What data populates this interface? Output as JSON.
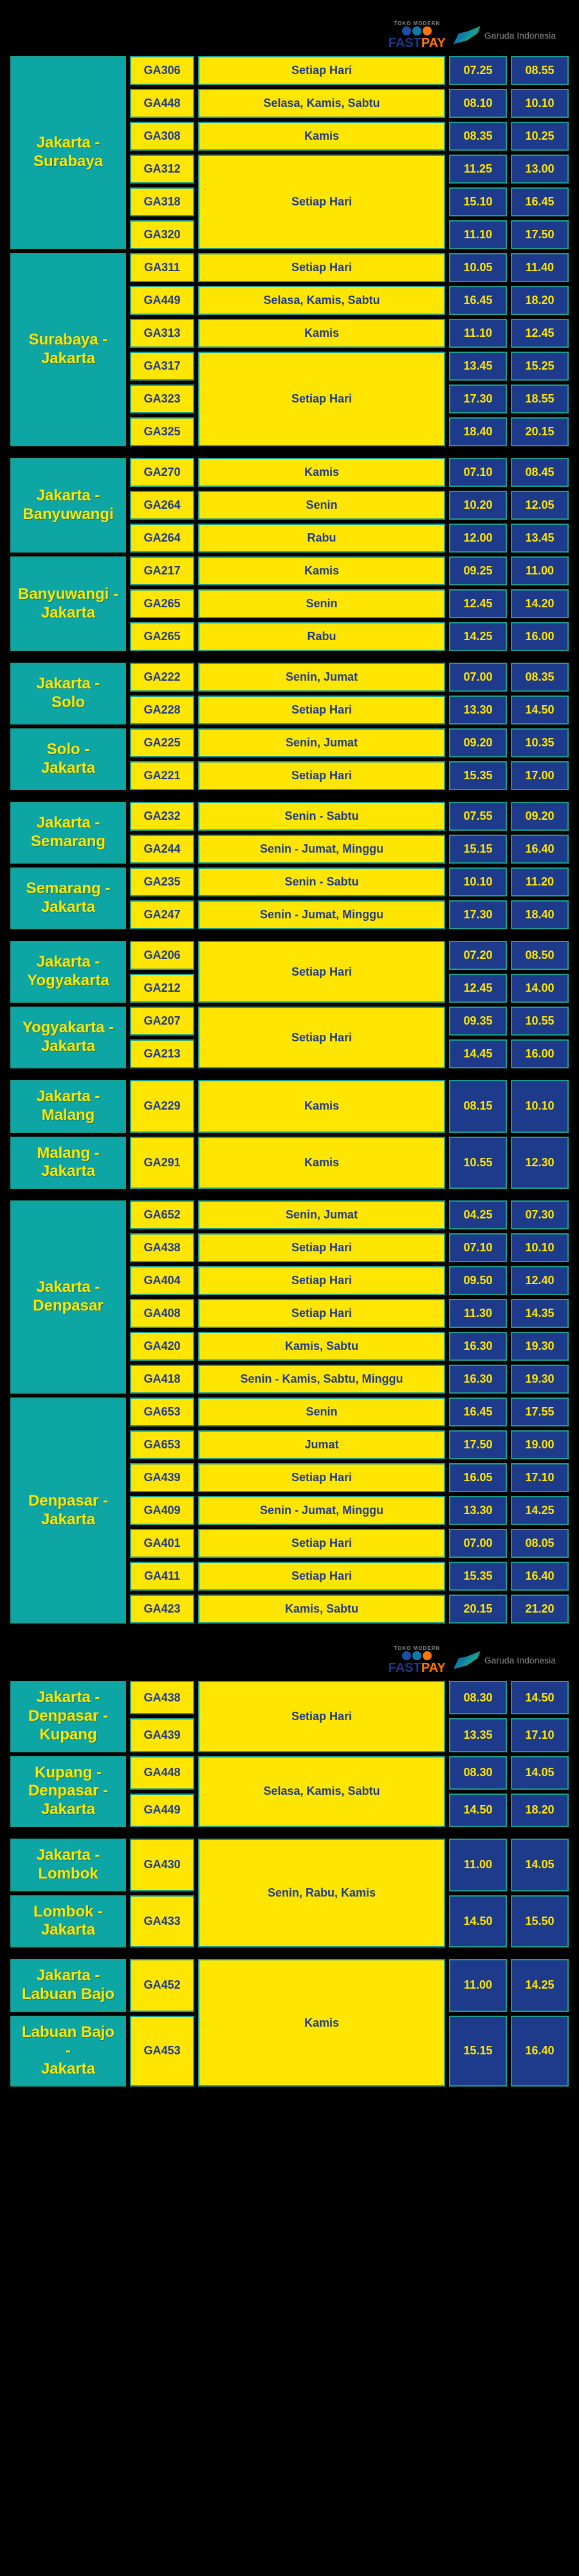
{
  "logos": {
    "fastpayTop": "TOKO MODERN",
    "fastpay1": "FAST",
    "fastpay2": "PAY",
    "garuda": "Garuda Indonesia"
  },
  "groups": [
    {
      "logoBefore": true,
      "blocks": [
        {
          "route": "Jakarta - Surabaya",
          "rows": [
            {
              "flight": "GA306",
              "day": "Setiap Hari",
              "t1": "07.25",
              "t2": "08.55",
              "daySpan": 1
            },
            {
              "flight": "GA448",
              "day": "Selasa, Kamis, Sabtu",
              "t1": "08.10",
              "t2": "10.10",
              "daySpan": 1
            },
            {
              "flight": "GA308",
              "day": "Kamis",
              "t1": "08.35",
              "t2": "10.25",
              "daySpan": 1
            },
            {
              "flight": "GA312",
              "day": "Setiap Hari",
              "t1": "11.25",
              "t2": "13.00",
              "daySpan": 3
            },
            {
              "flight": "GA318",
              "t1": "15.10",
              "t2": "16.45"
            },
            {
              "flight": "GA320",
              "t1": "11.10",
              "t2": "17.50"
            }
          ]
        },
        {
          "route": "Surabaya - Jakarta",
          "rows": [
            {
              "flight": "GA311",
              "day": "Setiap Hari",
              "t1": "10.05",
              "t2": "11.40",
              "daySpan": 1
            },
            {
              "flight": "GA449",
              "day": "Selasa, Kamis, Sabtu",
              "t1": "16.45",
              "t2": "18.20",
              "daySpan": 1
            },
            {
              "flight": "GA313",
              "day": "Kamis",
              "t1": "11.10",
              "t2": "12.45",
              "daySpan": 1
            },
            {
              "flight": "GA317",
              "day": "Setiap Hari",
              "t1": "13.45",
              "t2": "15.25",
              "daySpan": 3
            },
            {
              "flight": "GA323",
              "t1": "17.30",
              "t2": "18.55"
            },
            {
              "flight": "GA325",
              "t1": "18.40",
              "t2": "20.15"
            }
          ]
        }
      ]
    },
    {
      "blocks": [
        {
          "route": "Jakarta - Banyuwangi",
          "rows": [
            {
              "flight": "GA270",
              "day": "Kamis",
              "t1": "07.10",
              "t2": "08.45",
              "daySpan": 1
            },
            {
              "flight": "GA264",
              "day": "Senin",
              "t1": "10.20",
              "t2": "12.05",
              "daySpan": 1
            },
            {
              "flight": "GA264",
              "day": "Rabu",
              "t1": "12.00",
              "t2": "13.45",
              "daySpan": 1
            }
          ]
        },
        {
          "route": "Banyuwangi - Jakarta",
          "rows": [
            {
              "flight": "GA217",
              "day": "Kamis",
              "t1": "09.25",
              "t2": "11.00",
              "daySpan": 1
            },
            {
              "flight": "GA265",
              "day": "Senin",
              "t1": "12.45",
              "t2": "14.20",
              "daySpan": 1
            },
            {
              "flight": "GA265",
              "day": "Rabu",
              "t1": "14.25",
              "t2": "16.00",
              "daySpan": 1
            }
          ]
        }
      ]
    },
    {
      "blocks": [
        {
          "route": "Jakarta - Solo",
          "rows": [
            {
              "flight": "GA222",
              "day": "Senin, Jumat",
              "t1": "07.00",
              "t2": "08.35",
              "daySpan": 1
            },
            {
              "flight": "GA228",
              "day": "Setiap Hari",
              "t1": "13.30",
              "t2": "14.50",
              "daySpan": 1
            }
          ]
        },
        {
          "route": "Solo - Jakarta",
          "rows": [
            {
              "flight": "GA225",
              "day": "Senin, Jumat",
              "t1": "09.20",
              "t2": "10.35",
              "daySpan": 1
            },
            {
              "flight": "GA221",
              "day": "Setiap Hari",
              "t1": "15.35",
              "t2": "17.00",
              "daySpan": 1
            }
          ]
        }
      ]
    },
    {
      "blocks": [
        {
          "route": "Jakarta - Semarang",
          "rows": [
            {
              "flight": "GA232",
              "day": "Senin - Sabtu",
              "t1": "07.55",
              "t2": "09.20",
              "daySpan": 1
            },
            {
              "flight": "GA244",
              "day": "Senin - Jumat, Minggu",
              "t1": "15.15",
              "t2": "16.40",
              "daySpan": 1
            }
          ]
        },
        {
          "route": "Semarang - Jakarta",
          "rows": [
            {
              "flight": "GA235",
              "day": "Senin - Sabtu",
              "t1": "10.10",
              "t2": "11.20",
              "daySpan": 1
            },
            {
              "flight": "GA247",
              "day": "Senin - Jumat, Minggu",
              "t1": "17.30",
              "t2": "18.40",
              "daySpan": 1
            }
          ]
        }
      ]
    },
    {
      "blocks": [
        {
          "route": "Jakarta - Yogyakarta",
          "rows": [
            {
              "flight": "GA206",
              "day": "Setiap Hari",
              "t1": "07.20",
              "t2": "08.50",
              "daySpan": 2
            },
            {
              "flight": "GA212",
              "t1": "12.45",
              "t2": "14.00"
            }
          ]
        },
        {
          "route": "Yogyakarta - Jakarta",
          "rows": [
            {
              "flight": "GA207",
              "day": "Setiap Hari",
              "t1": "09.35",
              "t2": "10.55",
              "daySpan": 2
            },
            {
              "flight": "GA213",
              "t1": "14.45",
              "t2": "16.00"
            }
          ]
        }
      ]
    },
    {
      "blocks": [
        {
          "route": "Jakarta - Malang",
          "rows": [
            {
              "flight": "GA229",
              "day": "Kamis",
              "t1": "08.15",
              "t2": "10.10",
              "daySpan": 1
            }
          ]
        },
        {
          "route": "Malang - Jakarta",
          "rows": [
            {
              "flight": "GA291",
              "day": "Kamis",
              "t1": "10.55",
              "t2": "12.30",
              "daySpan": 1
            }
          ]
        }
      ]
    },
    {
      "blocks": [
        {
          "route": "Jakarta - Denpasar",
          "rows": [
            {
              "flight": "GA652",
              "day": "Senin, Jumat",
              "t1": "04.25",
              "t2": "07.30",
              "daySpan": 1
            },
            {
              "flight": "GA438",
              "day": "Setiap Hari",
              "t1": "07.10",
              "t2": "10.10",
              "daySpan": 1
            },
            {
              "flight": "GA404",
              "day": "Setiap Hari",
              "t1": "09.50",
              "t2": "12.40",
              "daySpan": 1
            },
            {
              "flight": "GA408",
              "day": "Setiap Hari",
              "t1": "11.30",
              "t2": "14.35",
              "daySpan": 1
            },
            {
              "flight": "GA420",
              "day": "Kamis, Sabtu",
              "t1": "16.30",
              "t2": "19.30",
              "daySpan": 1
            },
            {
              "flight": "GA418",
              "day": "Senin - Kamis, Sabtu, Minggu",
              "t1": "16.30",
              "t2": "19.30",
              "daySpan": 1
            }
          ]
        },
        {
          "route": "Denpasar - Jakarta",
          "rows": [
            {
              "flight": "GA653",
              "day": "Senin",
              "t1": "16.45",
              "t2": "17.55",
              "daySpan": 1
            },
            {
              "flight": "GA653",
              "day": "Jumat",
              "t1": "17.50",
              "t2": "19.00",
              "daySpan": 1
            },
            {
              "flight": "GA439",
              "day": "Setiap Hari",
              "t1": "16.05",
              "t2": "17.10",
              "daySpan": 1
            },
            {
              "flight": "GA409",
              "day": "Senin - Jumat, Minggu",
              "t1": "13.30",
              "t2": "14.25",
              "daySpan": 1
            },
            {
              "flight": "GA401",
              "day": "Setiap Hari",
              "t1": "07.00",
              "t2": "08.05",
              "daySpan": 1
            },
            {
              "flight": "GA411",
              "day": "Setiap Hari",
              "t1": "15.35",
              "t2": "16.40",
              "daySpan": 1
            },
            {
              "flight": "GA423",
              "day": "Kamis, Sabtu",
              "t1": "20.15",
              "t2": "21.20",
              "daySpan": 1
            }
          ]
        }
      ]
    },
    {
      "logoBefore": true,
      "blocks": [
        {
          "route": "Jakarta - Denpasar - Kupang",
          "rows": [
            {
              "flight": "GA438",
              "day": "Setiap Hari",
              "t1": "08.30",
              "t2": "14.50",
              "daySpan": 2
            },
            {
              "flight": "GA439",
              "t1": "13.35",
              "t2": "17.10"
            }
          ]
        },
        {
          "route": "Kupang - Denpasar - Jakarta",
          "rows": [
            {
              "flight": "GA448",
              "day": "Selasa, Kamis, Sabtu",
              "t1": "08.30",
              "t2": "14.05",
              "daySpan": 2
            },
            {
              "flight": "GA449",
              "t1": "14.50",
              "t2": "18.20"
            }
          ]
        }
      ]
    },
    {
      "blocks": [
        {
          "route": "Jakarta - Lombok",
          "rows": [
            {
              "flight": "GA430",
              "day": "Senin, Rabu, Kamis",
              "t1": "11.00",
              "t2": "14.05",
              "daySpan": 2,
              "dayCrossBlock": true
            }
          ]
        },
        {
          "route": "Lombok - Jakarta",
          "rows": [
            {
              "flight": "GA433",
              "t1": "14.50",
              "t2": "15.50"
            }
          ]
        }
      ]
    },
    {
      "blocks": [
        {
          "route": "Jakarta - Labuan Bajo",
          "rows": [
            {
              "flight": "GA452",
              "day": "Kamis",
              "t1": "11.00",
              "t2": "14.25",
              "daySpan": 2,
              "dayCrossBlock": true
            }
          ]
        },
        {
          "route": "Labuan Bajo - Jakarta",
          "rows": [
            {
              "flight": "GA453",
              "t1": "15.15",
              "t2": "16.40"
            }
          ]
        }
      ]
    }
  ]
}
